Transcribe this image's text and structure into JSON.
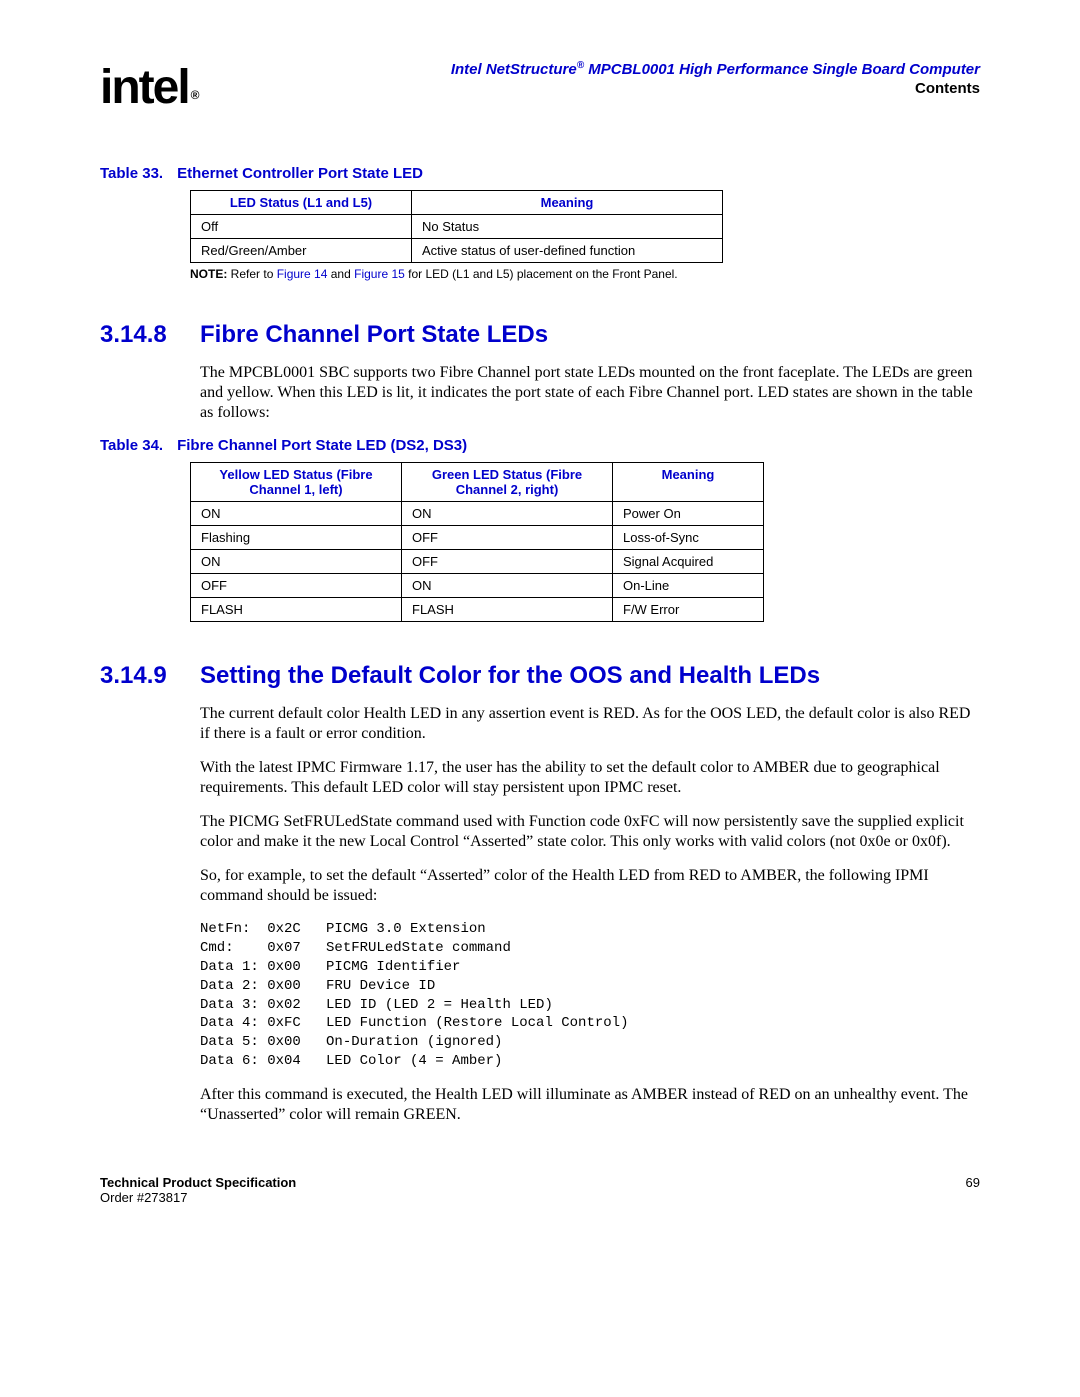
{
  "header": {
    "logo_text": "intel",
    "logo_reg": "®",
    "title_prefix": "Intel NetStructure",
    "title_reg": "®",
    "title_suffix": " MPCBL0001 High Performance Single Board Computer",
    "subtitle": "Contents"
  },
  "table33": {
    "caption_label": "Table 33.",
    "caption_title": "Ethernet Controller Port State LED",
    "columns": [
      "LED Status (L1 and L5)",
      "Meaning"
    ],
    "col_widths": [
      "200px",
      "290px"
    ],
    "rows": [
      [
        "Off",
        "No Status"
      ],
      [
        "Red/Green/Amber",
        "Active status of user-defined function"
      ]
    ],
    "note_label": "NOTE:",
    "note_before": " Refer to ",
    "note_ref1": "Figure 14",
    "note_mid": " and ",
    "note_ref2": "Figure 15",
    "note_after": " for LED (L1 and L5) placement on the Front Panel."
  },
  "section_3148": {
    "num": "3.14.8",
    "title": "Fibre Channel Port State LEDs",
    "p1": "The MPCBL0001 SBC supports two Fibre Channel port state LEDs mounted on the front faceplate. The LEDs are green and yellow. When this LED is lit, it indicates the port state of each Fibre Channel port. LED states are shown in the table as follows:"
  },
  "table34": {
    "caption_label": "Table 34.",
    "caption_title": "Fibre Channel Port State LED (DS2, DS3)",
    "columns": [
      "Yellow LED Status (Fibre Channel 1, left)",
      "Green LED Status (Fibre Channel 2, right)",
      "Meaning"
    ],
    "col_widths": [
      "190px",
      "190px",
      "130px"
    ],
    "rows": [
      [
        "ON",
        "ON",
        "Power On"
      ],
      [
        "Flashing",
        "OFF",
        "Loss-of-Sync"
      ],
      [
        "ON",
        "OFF",
        "Signal Acquired"
      ],
      [
        "OFF",
        "ON",
        "On-Line"
      ],
      [
        "FLASH",
        "FLASH",
        "F/W Error"
      ]
    ]
  },
  "section_3149": {
    "num": "3.14.9",
    "title": "Setting the Default Color for the OOS and Health LEDs",
    "p1": "The current default color Health LED in any assertion event is RED. As for the OOS LED, the default color is also RED if there is a fault or error condition.",
    "p2": "With the latest IPMC Firmware 1.17, the user has the ability to set the default color to AMBER due to geographical requirements. This default LED color will stay persistent upon IPMC reset.",
    "p3": "The PICMG SetFRULedState command used with Function code 0xFC will now persistently save the supplied explicit color and make it the new Local Control “Asserted” state color. This only works with valid colors (not 0x0e or 0x0f).",
    "p4": "So, for example, to set the default “Asserted” color of the Health LED from RED to AMBER, the following IPMI command should be issued:",
    "code": "NetFn:  0x2C   PICMG 3.0 Extension\nCmd:    0x07   SetFRULedState command\nData 1: 0x00   PICMG Identifier\nData 2: 0x00   FRU Device ID\nData 3: 0x02   LED ID (LED 2 = Health LED)\nData 4: 0xFC   LED Function (Restore Local Control)\nData 5: 0x00   On-Duration (ignored)\nData 6: 0x04   LED Color (4 = Amber)",
    "p5": "After this command is executed, the Health LED will illuminate as AMBER instead of RED on an unhealthy event. The “Unasserted” color will remain GREEN."
  },
  "footer": {
    "spec": "Technical Product Specification",
    "order": "Order #273817",
    "page": "69"
  }
}
